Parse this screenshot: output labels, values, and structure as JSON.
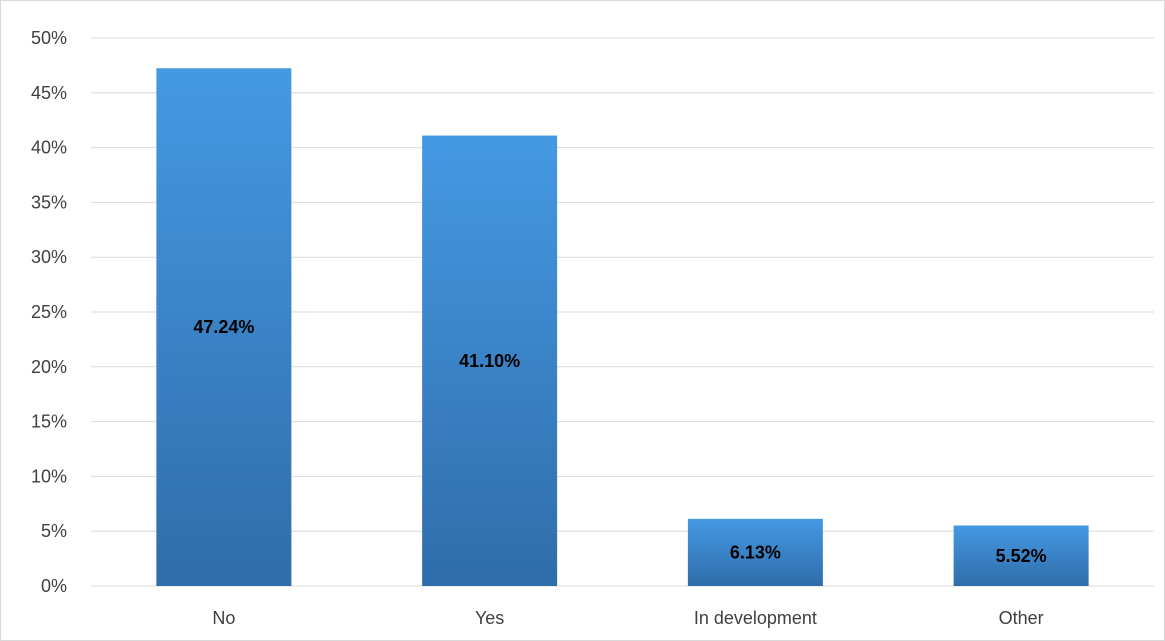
{
  "chart_data": {
    "type": "bar",
    "categories": [
      "No",
      "Yes",
      "In development",
      "Other"
    ],
    "values": [
      47.24,
      41.1,
      6.13,
      5.52
    ],
    "data_labels": [
      "47.24%",
      "41.10%",
      "6.13%",
      "5.52%"
    ],
    "y_ticks": [
      "0%",
      "5%",
      "10%",
      "15%",
      "20%",
      "25%",
      "30%",
      "35%",
      "40%",
      "45%",
      "50%"
    ],
    "ylim": [
      0,
      50
    ],
    "y_unit": "%",
    "grid": true,
    "legend": "none",
    "bar_color_top": "#4599e3",
    "bar_color_bottom": "#2f6daa",
    "gridline_color": "#d9d9d9",
    "tick_color": "#404040"
  }
}
